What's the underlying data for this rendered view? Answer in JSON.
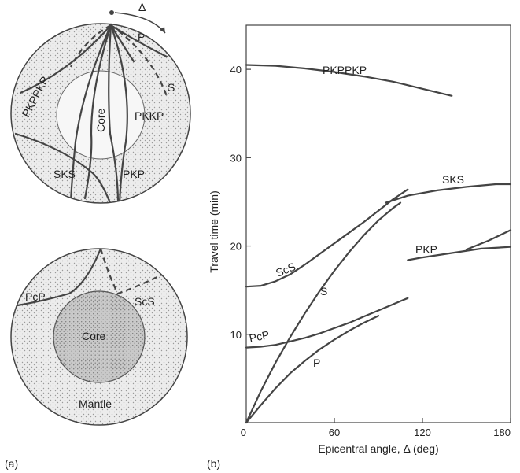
{
  "panel_labels": {
    "a": "(a)",
    "b": "(b)"
  },
  "diagram_top": {
    "delta_symbol": "Δ",
    "labels": {
      "p": "P",
      "s": "S",
      "pkppkp": "PKPPKP",
      "core": "Core",
      "pkkp": "PKKP",
      "sks": "SKS",
      "pkp": "PKP"
    }
  },
  "diagram_bottom": {
    "labels": {
      "pcp": "PcP",
      "scs": "ScS",
      "core": "Core",
      "mantle": "Mantle"
    }
  },
  "chart_data": {
    "type": "line",
    "title": "",
    "xlabel": "Epicentral angle, Δ (deg)",
    "ylabel": "Travel time (min)",
    "xlim": [
      0,
      180
    ],
    "ylim": [
      0,
      45
    ],
    "xticks": [
      0,
      60,
      120,
      180
    ],
    "yticks": [
      10,
      20,
      30,
      40
    ],
    "grid": false,
    "series": [
      {
        "name": "PKPPKP",
        "x": [
          0,
          20,
          40,
          60,
          80,
          100,
          120,
          140
        ],
        "y": [
          40.5,
          40.4,
          40.1,
          39.7,
          39.2,
          38.6,
          37.8,
          37.0
        ]
      },
      {
        "name": "SKS",
        "x": [
          95,
          110,
          130,
          150,
          170,
          180
        ],
        "y": [
          24.9,
          25.7,
          26.3,
          26.7,
          27.0,
          27.0
        ]
      },
      {
        "name": "ScS",
        "x": [
          0,
          10,
          20,
          30,
          40,
          50,
          60,
          70,
          80,
          90,
          100,
          110
        ],
        "y": [
          15.4,
          15.5,
          16.0,
          16.8,
          17.9,
          19.1,
          20.3,
          21.5,
          22.7,
          24.0,
          25.3,
          26.4
        ]
      },
      {
        "name": "S",
        "x": [
          0,
          10,
          20,
          30,
          40,
          50,
          60,
          70,
          80,
          90,
          100,
          105
        ],
        "y": [
          0,
          3.6,
          6.8,
          9.7,
          12.4,
          14.9,
          17.2,
          19.3,
          21.2,
          22.9,
          24.3,
          24.9
        ]
      },
      {
        "name": "PcP",
        "x": [
          0,
          10,
          20,
          30,
          40,
          50,
          60,
          70,
          80,
          90,
          100,
          110
        ],
        "y": [
          8.5,
          8.6,
          8.8,
          9.2,
          9.6,
          10.1,
          10.7,
          11.3,
          12.0,
          12.7,
          13.4,
          14.1
        ]
      },
      {
        "name": "P",
        "x": [
          0,
          10,
          20,
          30,
          40,
          50,
          60,
          70,
          80,
          90
        ],
        "y": [
          0,
          2.0,
          3.9,
          5.6,
          7.0,
          8.3,
          9.4,
          10.4,
          11.3,
          12.1
        ]
      },
      {
        "name": "PKP",
        "x": [
          110,
          120,
          140,
          160,
          180
        ],
        "y": [
          18.4,
          18.7,
          19.2,
          19.7,
          19.9
        ]
      },
      {
        "name": "",
        "x": [
          150,
          165,
          180
        ],
        "y": [
          19.6,
          20.6,
          21.8
        ]
      }
    ]
  }
}
